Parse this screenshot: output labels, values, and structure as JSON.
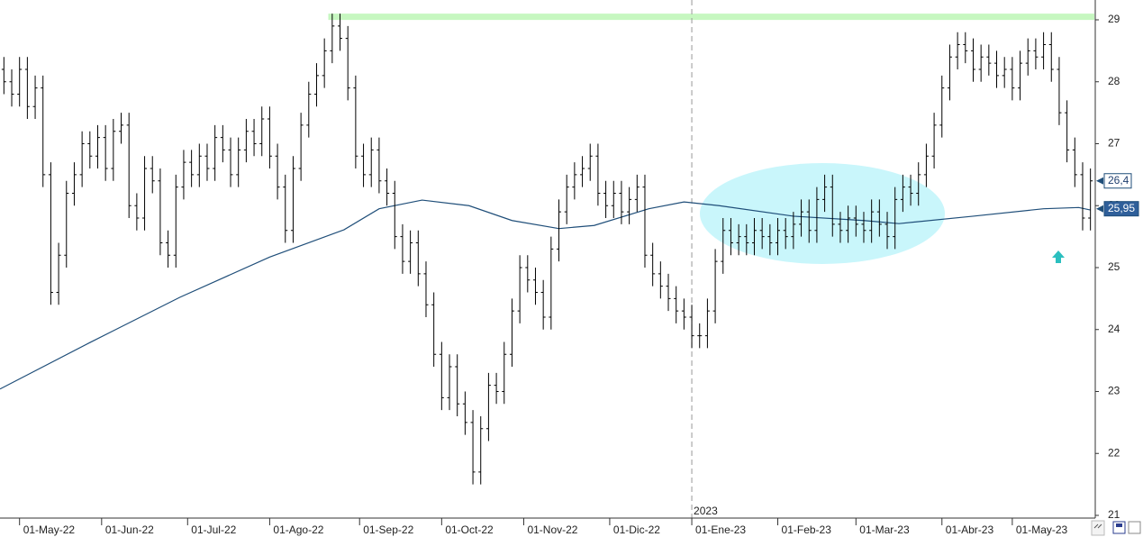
{
  "chart_data": {
    "type": "ohlc",
    "color": "#000000",
    "xlim": [
      0,
      280
    ],
    "ylim": [
      21,
      29
    ],
    "yticks": [
      21,
      22,
      23,
      24,
      25,
      26,
      27,
      28,
      29
    ],
    "xticks": [
      {
        "value": 5,
        "label": "01-May-22"
      },
      {
        "value": 26,
        "label": "01-Jun-22"
      },
      {
        "value": 48,
        "label": "01-Jul-22"
      },
      {
        "value": 69,
        "label": "01-Ago-22"
      },
      {
        "value": 92,
        "label": "01-Sep-22"
      },
      {
        "value": 113,
        "label": "01-Oct-22"
      },
      {
        "value": 134,
        "label": "01-Nov-22"
      },
      {
        "value": 156,
        "label": "01-Dic-22"
      },
      {
        "value": 177,
        "label": "01-Ene-23"
      },
      {
        "value": 199,
        "label": "01-Feb-23"
      },
      {
        "value": 219,
        "label": "01-Mar-23"
      },
      {
        "value": 241,
        "label": "01-Abr-23"
      },
      {
        "value": 259,
        "label": "01-May-23"
      }
    ],
    "grid": false,
    "x": [
      1,
      3,
      5,
      7,
      9,
      11,
      13,
      15,
      17,
      19,
      21,
      23,
      25,
      27,
      29,
      31,
      33,
      35,
      37,
      39,
      41,
      43,
      45,
      47,
      49,
      51,
      53,
      55,
      57,
      59,
      61,
      63,
      65,
      67,
      69,
      71,
      73,
      75,
      77,
      79,
      81,
      83,
      85,
      87,
      89,
      91,
      93,
      95,
      97,
      99,
      101,
      103,
      105,
      107,
      109,
      111,
      113,
      115,
      117,
      119,
      121,
      123,
      125,
      127,
      129,
      131,
      133,
      135,
      137,
      139,
      141,
      143,
      145,
      147,
      149,
      151,
      153,
      155,
      157,
      159,
      161,
      163,
      165,
      167,
      169,
      171,
      173,
      175,
      177,
      179,
      181,
      183,
      185,
      187,
      189,
      191,
      193,
      195,
      197,
      199,
      201,
      203,
      205,
      207,
      209,
      211,
      213,
      215,
      217,
      219,
      221,
      223,
      225,
      227,
      229,
      231,
      233,
      235,
      237,
      239,
      241,
      243,
      245,
      247,
      249,
      251,
      253,
      255,
      257,
      259,
      261,
      263,
      265,
      267,
      269,
      271,
      273,
      275,
      277,
      279
    ],
    "open": [
      28.2,
      28.0,
      27.8,
      28.2,
      27.6,
      27.9,
      26.5,
      24.6,
      25.2,
      26.2,
      26.5,
      27.0,
      26.8,
      27.1,
      26.6,
      27.2,
      27.3,
      26.0,
      25.8,
      26.6,
      26.4,
      25.4,
      25.2,
      26.3,
      26.7,
      26.5,
      26.8,
      26.6,
      27.1,
      26.9,
      26.5,
      26.9,
      27.2,
      27.0,
      27.4,
      26.8,
      26.3,
      25.6,
      26.6,
      27.3,
      27.8,
      28.1,
      28.5,
      28.9,
      28.7,
      27.9,
      26.8,
      26.5,
      26.9,
      26.4,
      26.2,
      25.5,
      25.1,
      25.4,
      24.9,
      24.4,
      23.6,
      22.9,
      23.4,
      22.8,
      22.5,
      21.7,
      22.4,
      23.1,
      23.0,
      23.6,
      24.3,
      25.0,
      24.8,
      24.6,
      24.2,
      25.3,
      25.9,
      26.3,
      26.5,
      26.6,
      26.8,
      26.2,
      26.0,
      26.2,
      25.9,
      26.1,
      26.3,
      25.2,
      24.9,
      24.7,
      24.5,
      24.3,
      24.2,
      23.9,
      23.9,
      24.3,
      25.1,
      25.6,
      25.4,
      25.5,
      25.4,
      25.6,
      25.5,
      25.4,
      25.6,
      25.5,
      25.7,
      25.9,
      25.6,
      26.1,
      26.3,
      25.7,
      25.6,
      25.8,
      25.7,
      25.6,
      25.9,
      25.7,
      25.5,
      26.1,
      26.3,
      26.2,
      26.5,
      26.8,
      27.3,
      27.9,
      28.4,
      28.6,
      28.5,
      28.2,
      28.4,
      28.3,
      28.1,
      28.2,
      27.9,
      28.3,
      28.5,
      28.4,
      28.6,
      28.2,
      27.5,
      26.9,
      26.5,
      25.8
    ],
    "high": [
      28.4,
      28.2,
      28.4,
      28.4,
      28.1,
      28.1,
      26.7,
      25.4,
      26.4,
      26.7,
      27.2,
      27.2,
      27.3,
      27.3,
      27.4,
      27.5,
      27.5,
      26.2,
      26.8,
      26.8,
      26.6,
      25.6,
      26.5,
      26.9,
      26.9,
      27.0,
      27.0,
      27.3,
      27.3,
      27.1,
      27.1,
      27.4,
      27.4,
      27.6,
      27.6,
      27.0,
      26.5,
      26.8,
      27.5,
      28.0,
      28.3,
      28.7,
      29.1,
      29.1,
      28.9,
      28.1,
      27.0,
      27.1,
      27.1,
      26.6,
      26.4,
      25.7,
      25.6,
      25.6,
      25.1,
      24.6,
      23.8,
      23.6,
      23.6,
      23.0,
      22.7,
      22.6,
      23.3,
      23.3,
      23.8,
      24.5,
      25.2,
      25.2,
      25.0,
      24.8,
      25.5,
      26.1,
      26.5,
      26.7,
      26.8,
      27.0,
      27.0,
      26.4,
      26.4,
      26.4,
      26.3,
      26.5,
      26.5,
      25.4,
      25.1,
      24.9,
      24.7,
      24.5,
      24.4,
      24.1,
      24.5,
      25.3,
      25.8,
      25.8,
      25.7,
      25.7,
      25.8,
      25.8,
      25.7,
      25.8,
      25.8,
      25.9,
      26.1,
      26.1,
      26.3,
      26.5,
      26.5,
      25.9,
      26.0,
      26.0,
      25.9,
      26.1,
      26.1,
      25.9,
      26.3,
      26.5,
      26.5,
      26.7,
      27.0,
      27.5,
      28.1,
      28.6,
      28.8,
      28.8,
      28.7,
      28.6,
      28.6,
      28.5,
      28.4,
      28.4,
      28.5,
      28.7,
      28.7,
      28.8,
      28.8,
      28.4,
      27.7,
      27.1,
      26.7,
      26.6
    ],
    "low": [
      27.8,
      27.6,
      27.6,
      27.4,
      27.4,
      26.3,
      24.4,
      24.4,
      25.0,
      26.0,
      26.3,
      26.6,
      26.6,
      26.4,
      26.4,
      27.0,
      25.8,
      25.6,
      25.6,
      26.2,
      25.2,
      25.0,
      25.0,
      26.1,
      26.3,
      26.3,
      26.4,
      26.4,
      26.7,
      26.3,
      26.3,
      26.7,
      26.8,
      26.8,
      26.6,
      26.1,
      25.4,
      25.4,
      26.4,
      27.1,
      27.6,
      27.9,
      28.3,
      28.5,
      27.7,
      26.6,
      26.3,
      26.3,
      26.2,
      26.0,
      25.3,
      24.9,
      24.9,
      24.7,
      24.2,
      23.4,
      22.7,
      22.7,
      22.6,
      22.3,
      21.5,
      21.5,
      22.2,
      22.8,
      22.8,
      23.4,
      24.1,
      24.6,
      24.4,
      24.0,
      24.0,
      25.1,
      25.7,
      26.1,
      26.3,
      26.4,
      26.0,
      25.8,
      25.8,
      25.7,
      25.7,
      25.9,
      25.0,
      24.7,
      24.5,
      24.3,
      24.1,
      24.0,
      23.7,
      23.7,
      23.7,
      24.1,
      24.9,
      25.2,
      25.2,
      25.2,
      25.2,
      25.3,
      25.2,
      25.2,
      25.3,
      25.3,
      25.5,
      25.4,
      25.4,
      25.9,
      25.5,
      25.4,
      25.4,
      25.5,
      25.4,
      25.4,
      25.5,
      25.3,
      25.3,
      25.9,
      26.0,
      26.0,
      26.3,
      26.6,
      27.1,
      27.7,
      28.2,
      28.3,
      28.0,
      28.0,
      28.1,
      27.9,
      27.9,
      27.7,
      27.7,
      28.1,
      28.2,
      28.2,
      28.0,
      27.3,
      26.7,
      26.3,
      25.6,
      25.6
    ],
    "close": [
      28.0,
      27.8,
      28.2,
      27.6,
      27.9,
      26.5,
      24.6,
      25.2,
      26.2,
      26.5,
      27.0,
      26.8,
      27.1,
      26.6,
      27.2,
      27.3,
      26.0,
      25.8,
      26.6,
      26.4,
      25.4,
      25.2,
      26.3,
      26.7,
      26.5,
      26.8,
      26.6,
      27.1,
      26.9,
      26.5,
      26.9,
      27.2,
      27.0,
      27.4,
      26.8,
      26.3,
      25.6,
      26.6,
      27.3,
      27.8,
      28.1,
      28.5,
      28.9,
      28.7,
      27.9,
      26.8,
      26.5,
      26.9,
      26.4,
      26.2,
      25.5,
      25.1,
      25.4,
      24.9,
      24.4,
      23.6,
      22.9,
      23.4,
      22.8,
      22.5,
      21.7,
      22.4,
      23.1,
      23.0,
      23.6,
      24.3,
      25.0,
      24.8,
      24.6,
      24.2,
      25.3,
      25.9,
      26.3,
      26.5,
      26.6,
      26.8,
      26.2,
      26.0,
      26.2,
      25.9,
      26.1,
      26.3,
      25.2,
      24.9,
      24.7,
      24.5,
      24.3,
      24.2,
      23.9,
      23.9,
      24.3,
      25.1,
      25.6,
      25.4,
      25.5,
      25.4,
      25.6,
      25.5,
      25.4,
      25.6,
      25.5,
      25.7,
      25.9,
      25.6,
      26.1,
      26.3,
      25.7,
      25.6,
      25.8,
      25.7,
      25.6,
      25.9,
      25.7,
      25.5,
      26.1,
      26.3,
      26.2,
      26.5,
      26.8,
      27.3,
      27.9,
      28.4,
      28.6,
      28.5,
      28.2,
      28.4,
      28.3,
      28.1,
      28.2,
      27.9,
      28.3,
      28.5,
      28.4,
      28.6,
      28.2,
      27.5,
      26.9,
      26.5,
      25.8,
      26.4
    ],
    "series": [
      {
        "type": "line",
        "color": "#1f4e79",
        "x": [
          0,
          23,
          46,
          69,
          88,
          97,
          108,
          120,
          131,
          143,
          152,
          166,
          175,
          184,
          203,
          221,
          230,
          249,
          267,
          276,
          279
        ],
        "values": [
          23.04,
          23.79,
          24.52,
          25.17,
          25.61,
          25.95,
          26.09,
          26.0,
          25.76,
          25.63,
          25.68,
          25.95,
          26.06,
          26.0,
          25.83,
          25.76,
          25.71,
          25.83,
          25.95,
          25.97,
          25.93
        ]
      }
    ],
    "hline": {
      "value": 29.05,
      "from": 84,
      "color": "#c6f7c0"
    },
    "year_marker": {
      "x": 177,
      "label": "2023"
    },
    "price_labels": [
      {
        "value": 26.4,
        "label": "26,4"
      },
      {
        "value": 25.95,
        "label": "25,95"
      }
    ]
  }
}
